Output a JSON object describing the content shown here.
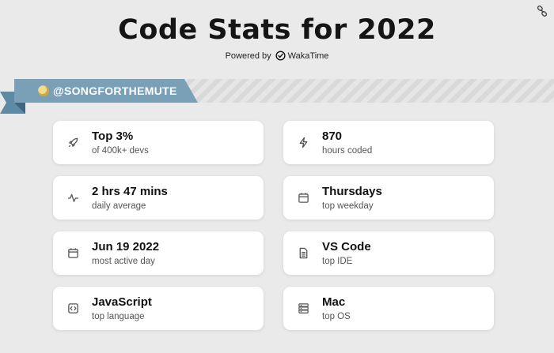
{
  "header": {
    "title": "Code Stats for 2022",
    "powered_prefix": "Powered by",
    "brand": "WakaTime"
  },
  "profile": {
    "username": "@SONGFORTHEMUTE"
  },
  "colors": {
    "ribbon": "#7aa0b8",
    "ribbon_dark": "#5f8aa6",
    "background": "#eaeaea",
    "card": "#ffffff"
  },
  "stats": [
    {
      "value": "Top 3%",
      "label": "of 400k+ devs",
      "icon": "rocket-icon"
    },
    {
      "value": "870",
      "label": "hours coded",
      "icon": "lightning-icon"
    },
    {
      "value": "2 hrs 47 mins",
      "label": "daily average",
      "icon": "activity-icon"
    },
    {
      "value": "Thursdays",
      "label": "top weekday",
      "icon": "calendar-icon"
    },
    {
      "value": "Jun 19 2022",
      "label": "most active day",
      "icon": "calendar-icon"
    },
    {
      "value": "VS Code",
      "label": "top IDE",
      "icon": "document-icon"
    },
    {
      "value": "JavaScript",
      "label": "top language",
      "icon": "code-icon"
    },
    {
      "value": "Mac",
      "label": "top OS",
      "icon": "server-icon"
    }
  ]
}
